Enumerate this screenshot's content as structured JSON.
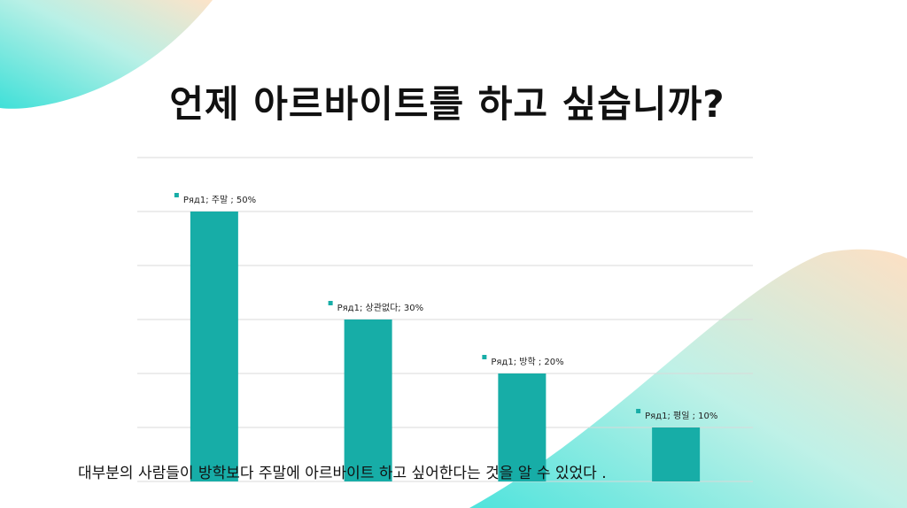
{
  "colors": {
    "bar": "#17ada7",
    "grid": "#d9d9d9",
    "title": "#111111"
  },
  "title": "언제 아르바이트를 하고 싶습니까?",
  "caption": "대부분의 사람들이  방학보다 주말에 아르바이트 하고 싶어한다는  것을 알 수 있었다 .",
  "chart_data": {
    "type": "bar",
    "categories": [
      "주말",
      "상관없다",
      "방학",
      "평일"
    ],
    "values": [
      50,
      30,
      20,
      10
    ],
    "value_unit": "%",
    "series": [
      {
        "name": "Ряд1",
        "values": [
          50,
          30,
          20,
          10
        ]
      }
    ],
    "data_labels": [
      "Ряд1; 주말 ; 50%",
      "Ряд1; 상관없다; 30%",
      "Ряд1; 방학 ; 20%",
      "Ряд1; 평일 ; 10%"
    ],
    "ylim": [
      0,
      60
    ],
    "grid": true,
    "legend": "none"
  }
}
